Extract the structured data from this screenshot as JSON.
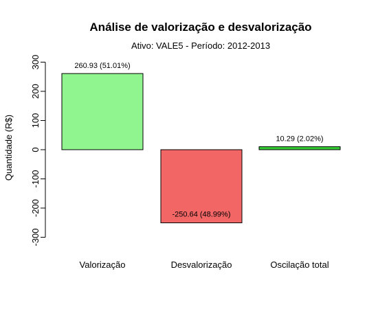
{
  "chart_data": {
    "type": "bar",
    "title": "Análise de valorização e desvalorização",
    "subtitle": "Ativo: VALE5 - Período: 2012-2013",
    "xlabel": "",
    "ylabel": "Quantidade (R$)",
    "ylim": [
      -300,
      300
    ],
    "yticks": [
      -300,
      -200,
      -100,
      0,
      100,
      200,
      300
    ],
    "grid": false,
    "categories": [
      "Valorização",
      "Desvalorização",
      "Oscilação total"
    ],
    "values": [
      260.93,
      -250.64,
      10.29
    ],
    "data_labels": [
      "260.93 (51.01%)",
      "-250.64 (48.99%)",
      "10.29 (2.02%)"
    ],
    "colors": [
      "#90f58f",
      "#f26666",
      "#33cc33"
    ]
  }
}
